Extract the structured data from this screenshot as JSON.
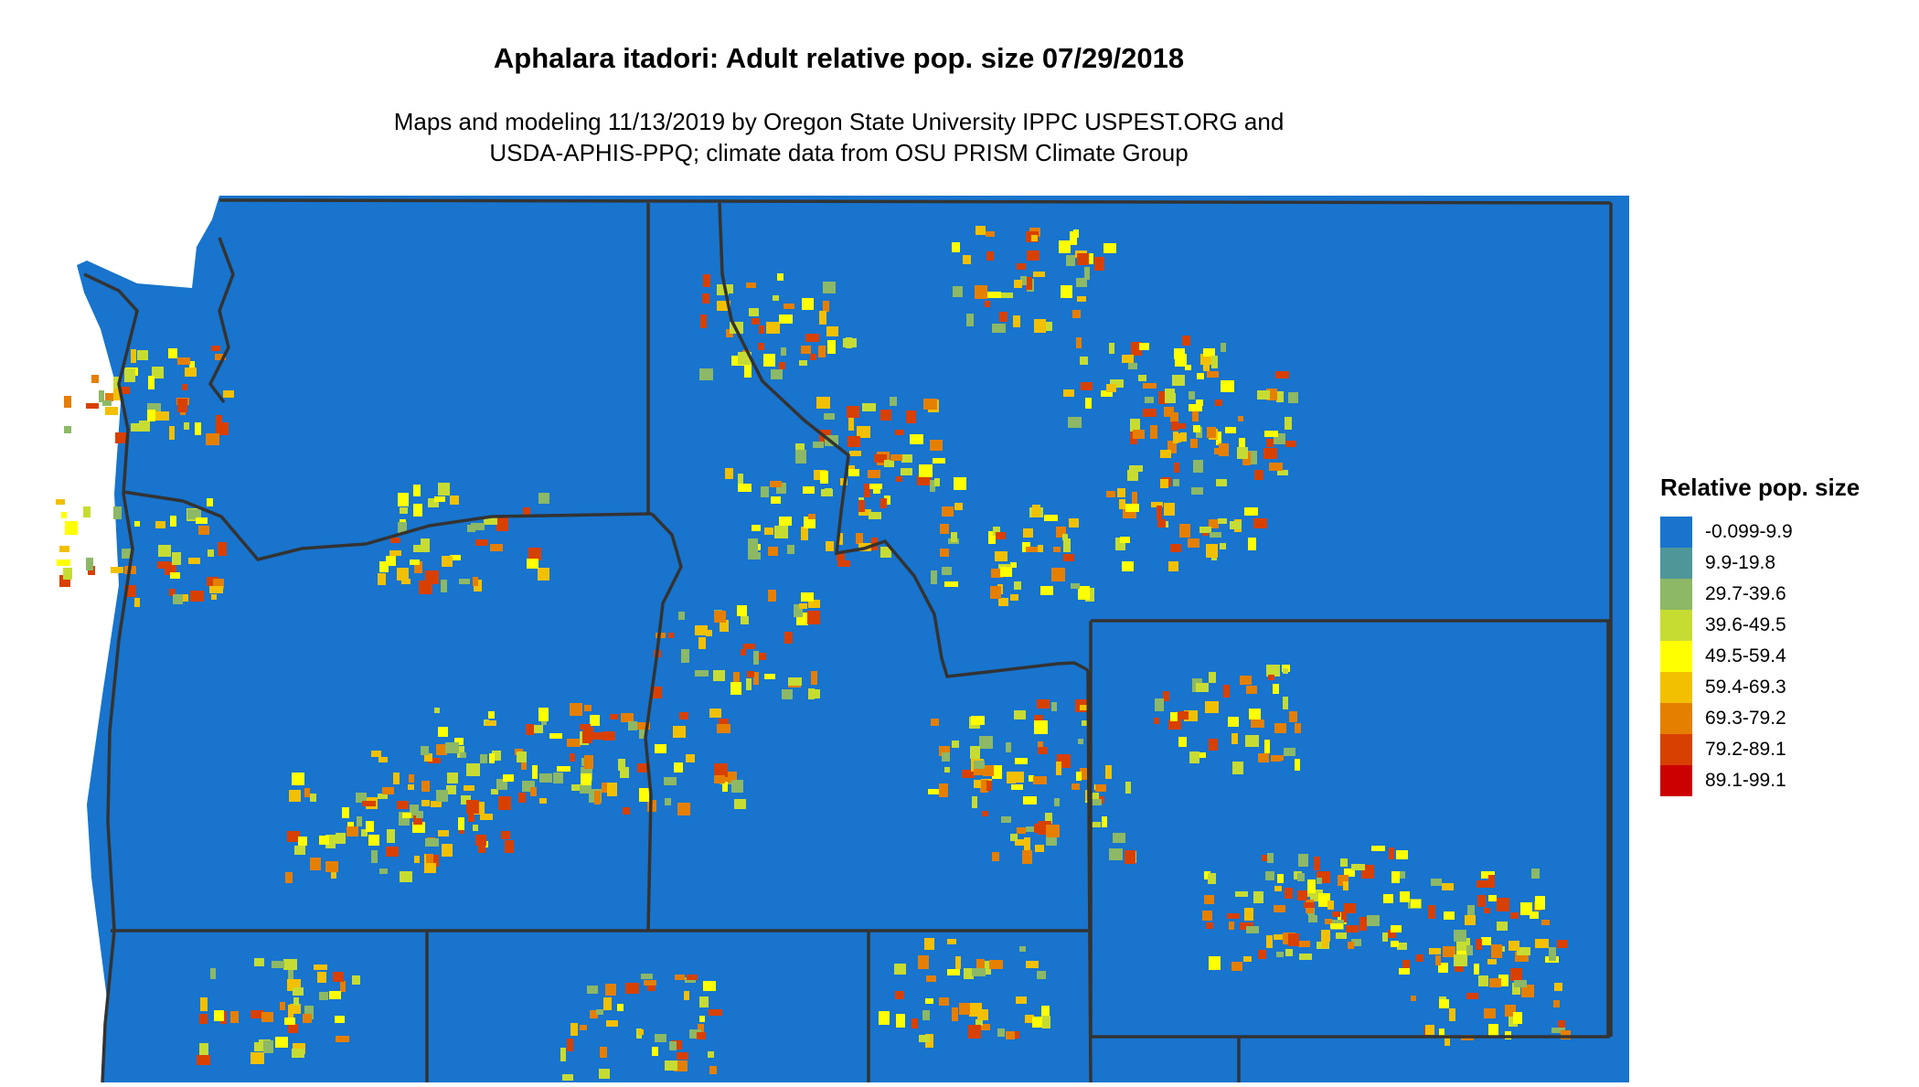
{
  "title": "Aphalara itadori: Adult relative pop. size 07/29/2018",
  "subtitle_line1": "Maps and modeling 11/13/2019 by Oregon State University IPPC USPEST.ORG and",
  "subtitle_line2": "USDA-APHIS-PPQ; climate data from OSU PRISM Climate Group",
  "legend": {
    "title": "Relative pop. size",
    "items": [
      {
        "label": "-0.099-9.9",
        "color": "#1874CD"
      },
      {
        "label": "9.9-19.8",
        "color": "#4F9699"
      },
      {
        "label": "29.7-39.6",
        "color": "#8DB866"
      },
      {
        "label": "39.6-49.5",
        "color": "#C6DC33"
      },
      {
        "label": "49.5-59.4",
        "color": "#FFFF00"
      },
      {
        "label": "59.4-69.3",
        "color": "#F2C000"
      },
      {
        "label": "69.3-79.2",
        "color": "#E57F00"
      },
      {
        "label": "79.2-89.1",
        "color": "#D84000"
      },
      {
        "label": "89.1-99.1",
        "color": "#CC0000"
      }
    ]
  },
  "map": {
    "background_color": "#1874CD",
    "border_color": "#333333"
  }
}
